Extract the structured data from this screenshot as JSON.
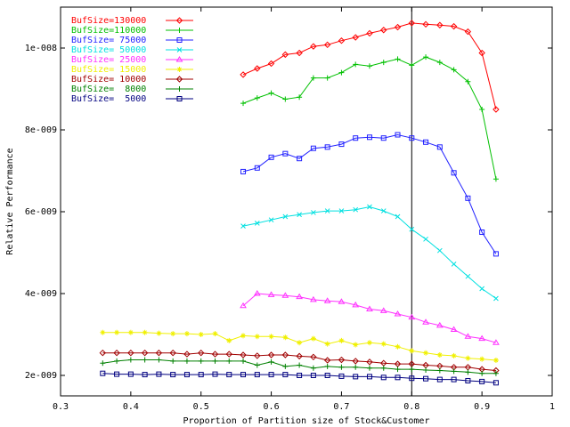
{
  "chart_data": {
    "type": "line",
    "title": "",
    "xlabel": "Proportion of Partition size of Stock&Customer",
    "ylabel": "Relative Performance",
    "xlim": [
      0.3,
      1.0
    ],
    "ylim": [
      1.5e-09,
      1.1e-08
    ],
    "x_ticks": [
      0.3,
      0.4,
      0.5,
      0.6,
      0.7,
      0.8,
      0.9,
      1.0
    ],
    "x_tick_labels": [
      "0.3",
      "0.4",
      "0.5",
      "0.6",
      "0.7",
      "0.8",
      "0.9",
      "1"
    ],
    "y_ticks": [
      2e-09,
      4e-09,
      6e-09,
      8e-09,
      1e-08
    ],
    "y_tick_labels": [
      "2e-009",
      "4e-009",
      "6e-009",
      "8e-009",
      "1e-008"
    ],
    "grid": false,
    "legend_position": "top-left",
    "reference_line_x": 0.8,
    "series": [
      {
        "name": "BufSize=130000",
        "color": "#ff0000",
        "marker": "diamond",
        "x": [
          0.56,
          0.58,
          0.6,
          0.62,
          0.64,
          0.66,
          0.68,
          0.7,
          0.72,
          0.74,
          0.76,
          0.78,
          0.8,
          0.82,
          0.84,
          0.86,
          0.88,
          0.9,
          0.92
        ],
        "y": [
          9.35e-09,
          9.5e-09,
          9.62e-09,
          9.84e-09,
          9.88e-09,
          1.004e-08,
          1.008e-08,
          1.018e-08,
          1.026e-08,
          1.036e-08,
          1.044e-08,
          1.051e-08,
          1.061e-08,
          1.058e-08,
          1.056e-08,
          1.053e-08,
          1.04e-08,
          9.88e-09,
          8.5e-09
        ]
      },
      {
        "name": "BufSize=110000",
        "color": "#00c000",
        "marker": "plus",
        "x": [
          0.56,
          0.58,
          0.6,
          0.62,
          0.64,
          0.66,
          0.68,
          0.7,
          0.72,
          0.74,
          0.76,
          0.78,
          0.8,
          0.82,
          0.84,
          0.86,
          0.88,
          0.9,
          0.92
        ],
        "y": [
          8.65e-09,
          8.78e-09,
          8.9e-09,
          8.75e-09,
          8.8e-09,
          9.27e-09,
          9.27e-09,
          9.4e-09,
          9.6e-09,
          9.56e-09,
          9.65e-09,
          9.73e-09,
          9.58e-09,
          9.78e-09,
          9.65e-09,
          9.47e-09,
          9.18e-09,
          8.5e-09,
          6.8e-09
        ]
      },
      {
        "name": "BufSize= 75000",
        "color": "#2020ff",
        "marker": "square",
        "x": [
          0.56,
          0.58,
          0.6,
          0.62,
          0.64,
          0.66,
          0.68,
          0.7,
          0.72,
          0.74,
          0.76,
          0.78,
          0.8,
          0.82,
          0.84,
          0.86,
          0.88,
          0.9,
          0.92
        ],
        "y": [
          6.98e-09,
          7.07e-09,
          7.33e-09,
          7.42e-09,
          7.3e-09,
          7.55e-09,
          7.58e-09,
          7.65e-09,
          7.8e-09,
          7.82e-09,
          7.8e-09,
          7.88e-09,
          7.8e-09,
          7.7e-09,
          7.58e-09,
          6.95e-09,
          6.33e-09,
          5.5e-09,
          4.97e-09
        ]
      },
      {
        "name": "BufSize= 50000",
        "color": "#00e0e0",
        "marker": "cross",
        "x": [
          0.56,
          0.58,
          0.6,
          0.62,
          0.64,
          0.66,
          0.68,
          0.7,
          0.72,
          0.74,
          0.76,
          0.78,
          0.8,
          0.82,
          0.84,
          0.86,
          0.88,
          0.9,
          0.92
        ],
        "y": [
          5.65e-09,
          5.72e-09,
          5.8e-09,
          5.88e-09,
          5.93e-09,
          5.98e-09,
          6.02e-09,
          6.02e-09,
          6.05e-09,
          6.12e-09,
          6.02e-09,
          5.88e-09,
          5.57e-09,
          5.33e-09,
          5.05e-09,
          4.72e-09,
          4.42e-09,
          4.12e-09,
          3.88e-09
        ]
      },
      {
        "name": "BufSize= 25000",
        "color": "#ff30ff",
        "marker": "triangle",
        "x": [
          0.56,
          0.58,
          0.6,
          0.62,
          0.64,
          0.66,
          0.68,
          0.7,
          0.72,
          0.74,
          0.76,
          0.78,
          0.8,
          0.82,
          0.84,
          0.86,
          0.88,
          0.9,
          0.92
        ],
        "y": [
          3.7e-09,
          4e-09,
          3.97e-09,
          3.95e-09,
          3.92e-09,
          3.85e-09,
          3.82e-09,
          3.8e-09,
          3.72e-09,
          3.62e-09,
          3.58e-09,
          3.5e-09,
          3.42e-09,
          3.3e-09,
          3.22e-09,
          3.12e-09,
          2.95e-09,
          2.9e-09,
          2.8e-09
        ]
      },
      {
        "name": "BufSize= 15000",
        "color": "#f0f000",
        "marker": "star",
        "x": [
          0.36,
          0.38,
          0.4,
          0.42,
          0.44,
          0.46,
          0.48,
          0.5,
          0.52,
          0.54,
          0.56,
          0.58,
          0.6,
          0.62,
          0.64,
          0.66,
          0.68,
          0.7,
          0.72,
          0.74,
          0.76,
          0.78,
          0.8,
          0.82,
          0.84,
          0.86,
          0.88,
          0.9,
          0.92
        ],
        "y": [
          3.05e-09,
          3.05e-09,
          3.05e-09,
          3.05e-09,
          3.03e-09,
          3.02e-09,
          3.02e-09,
          3e-09,
          3.02e-09,
          2.85e-09,
          2.97e-09,
          2.95e-09,
          2.95e-09,
          2.93e-09,
          2.8e-09,
          2.9e-09,
          2.77e-09,
          2.85e-09,
          2.75e-09,
          2.8e-09,
          2.77e-09,
          2.7e-09,
          2.6e-09,
          2.55e-09,
          2.5e-09,
          2.48e-09,
          2.42e-09,
          2.4e-09,
          2.37e-09
        ]
      },
      {
        "name": "BufSize= 10000",
        "color": "#a00000",
        "marker": "diamond",
        "x": [
          0.36,
          0.38,
          0.4,
          0.42,
          0.44,
          0.46,
          0.48,
          0.5,
          0.52,
          0.54,
          0.56,
          0.58,
          0.6,
          0.62,
          0.64,
          0.66,
          0.68,
          0.7,
          0.72,
          0.74,
          0.76,
          0.78,
          0.8,
          0.82,
          0.84,
          0.86,
          0.88,
          0.9,
          0.92
        ],
        "y": [
          2.55e-09,
          2.55e-09,
          2.55e-09,
          2.55e-09,
          2.55e-09,
          2.55e-09,
          2.52e-09,
          2.55e-09,
          2.52e-09,
          2.52e-09,
          2.5e-09,
          2.48e-09,
          2.5e-09,
          2.5e-09,
          2.47e-09,
          2.45e-09,
          2.37e-09,
          2.38e-09,
          2.35e-09,
          2.33e-09,
          2.3e-09,
          2.28e-09,
          2.28e-09,
          2.25e-09,
          2.23e-09,
          2.2e-09,
          2.2e-09,
          2.15e-09,
          2.12e-09
        ]
      },
      {
        "name": "BufSize=  8000",
        "color": "#008000",
        "marker": "plus",
        "x": [
          0.36,
          0.38,
          0.4,
          0.42,
          0.44,
          0.46,
          0.48,
          0.5,
          0.52,
          0.54,
          0.56,
          0.58,
          0.6,
          0.62,
          0.64,
          0.66,
          0.68,
          0.7,
          0.72,
          0.74,
          0.76,
          0.78,
          0.8,
          0.82,
          0.84,
          0.86,
          0.88,
          0.9,
          0.92
        ],
        "y": [
          2.3e-09,
          2.35e-09,
          2.38e-09,
          2.38e-09,
          2.38e-09,
          2.35e-09,
          2.35e-09,
          2.35e-09,
          2.35e-09,
          2.35e-09,
          2.35e-09,
          2.25e-09,
          2.33e-09,
          2.22e-09,
          2.25e-09,
          2.18e-09,
          2.22e-09,
          2.2e-09,
          2.2e-09,
          2.18e-09,
          2.18e-09,
          2.15e-09,
          2.15e-09,
          2.13e-09,
          2.12e-09,
          2.1e-09,
          2.08e-09,
          2.05e-09,
          2.05e-09
        ]
      },
      {
        "name": "BufSize=  5000",
        "color": "#000080",
        "marker": "square",
        "x": [
          0.36,
          0.38,
          0.4,
          0.42,
          0.44,
          0.46,
          0.48,
          0.5,
          0.52,
          0.54,
          0.56,
          0.58,
          0.6,
          0.62,
          0.64,
          0.66,
          0.68,
          0.7,
          0.72,
          0.74,
          0.76,
          0.78,
          0.8,
          0.82,
          0.84,
          0.86,
          0.88,
          0.9,
          0.92
        ],
        "y": [
          2.05e-09,
          2.03e-09,
          2.03e-09,
          2.02e-09,
          2.03e-09,
          2.02e-09,
          2.02e-09,
          2.02e-09,
          2.03e-09,
          2.02e-09,
          2.02e-09,
          2.02e-09,
          2.02e-09,
          2.02e-09,
          2e-09,
          2e-09,
          2e-09,
          1.98e-09,
          1.97e-09,
          1.97e-09,
          1.95e-09,
          1.95e-09,
          1.93e-09,
          1.92e-09,
          1.9e-09,
          1.9e-09,
          1.87e-09,
          1.85e-09,
          1.82e-09
        ]
      }
    ]
  }
}
